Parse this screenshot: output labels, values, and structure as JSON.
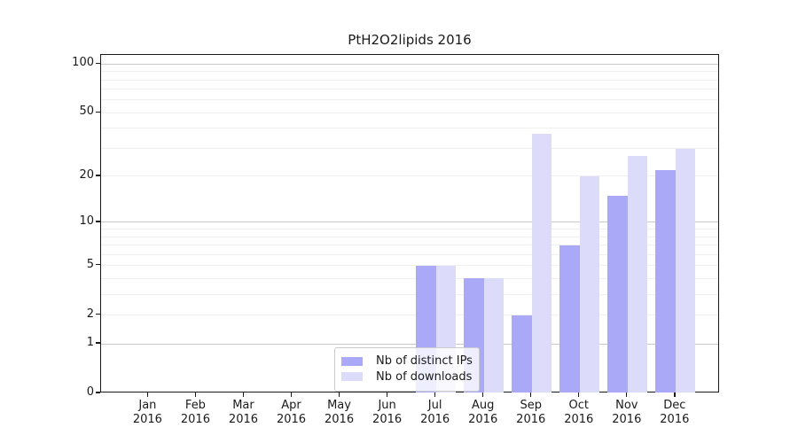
{
  "chart_data": {
    "type": "bar",
    "title": "PtH2O2lipids 2016",
    "categories": [
      "Jan",
      "Feb",
      "Mar",
      "Apr",
      "May",
      "Jun",
      "Jul",
      "Aug",
      "Sep",
      "Oct",
      "Nov",
      "Dec"
    ],
    "year_label": "2016",
    "series": [
      {
        "name": "Nb of distinct IPs",
        "color": "#a9a9f7",
        "values": [
          0,
          0,
          0,
          0,
          0,
          0,
          5,
          4,
          2,
          7,
          15,
          22
        ]
      },
      {
        "name": "Nb of downloads",
        "color": "#dcdcfa",
        "values": [
          0,
          0,
          0,
          0,
          0,
          0,
          5,
          4,
          37,
          20,
          27,
          30
        ]
      }
    ],
    "yscale": "log10(value+1)",
    "yticks": [
      0,
      1,
      2,
      5,
      10,
      20,
      50,
      100
    ],
    "yticks_major_grid": [
      1,
      10,
      100
    ],
    "yticks_minor_grid": [
      2,
      3,
      4,
      5,
      6,
      7,
      8,
      9,
      20,
      30,
      40,
      50,
      60,
      70,
      80,
      90
    ],
    "ylim": [
      0,
      115
    ],
    "xlabel": "",
    "ylabel": "",
    "grid": true,
    "legend_position": "inside-bottom-center"
  }
}
